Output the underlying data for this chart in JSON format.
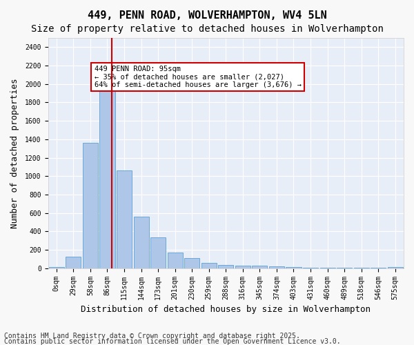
{
  "title": "449, PENN ROAD, WOLVERHAMPTON, WV4 5LN",
  "subtitle": "Size of property relative to detached houses in Wolverhampton",
  "xlabel": "Distribution of detached houses by size in Wolverhampton",
  "ylabel": "Number of detached properties",
  "bin_labels": [
    "0sqm",
    "29sqm",
    "58sqm",
    "86sqm",
    "115sqm",
    "144sqm",
    "173sqm",
    "201sqm",
    "230sqm",
    "259sqm",
    "288sqm",
    "316sqm",
    "345sqm",
    "374sqm",
    "403sqm",
    "431sqm",
    "460sqm",
    "489sqm",
    "518sqm",
    "546sqm",
    "575sqm"
  ],
  "bar_values": [
    10,
    125,
    1360,
    1920,
    1060,
    560,
    335,
    170,
    110,
    60,
    35,
    30,
    25,
    20,
    15,
    5,
    5,
    5,
    5,
    5,
    10
  ],
  "bar_color": "#aec6e8",
  "bar_edgecolor": "#5a9fd4",
  "vline_x": 3.27,
  "vline_color": "#cc0000",
  "annotation_text": "449 PENN ROAD: 95sqm\n← 35% of detached houses are smaller (2,027)\n64% of semi-detached houses are larger (3,676) →",
  "annotation_box_color": "#cc0000",
  "annotation_text_color": "#000000",
  "ylim": [
    0,
    2500
  ],
  "yticks": [
    0,
    200,
    400,
    600,
    800,
    1000,
    1200,
    1400,
    1600,
    1800,
    2000,
    2200,
    2400
  ],
  "background_color": "#e8eef8",
  "grid_color": "#ffffff",
  "footer_line1": "Contains HM Land Registry data © Crown copyright and database right 2025.",
  "footer_line2": "Contains public sector information licensed under the Open Government Licence v3.0.",
  "title_fontsize": 11,
  "subtitle_fontsize": 10,
  "xlabel_fontsize": 9,
  "ylabel_fontsize": 9,
  "tick_fontsize": 7,
  "footer_fontsize": 7
}
